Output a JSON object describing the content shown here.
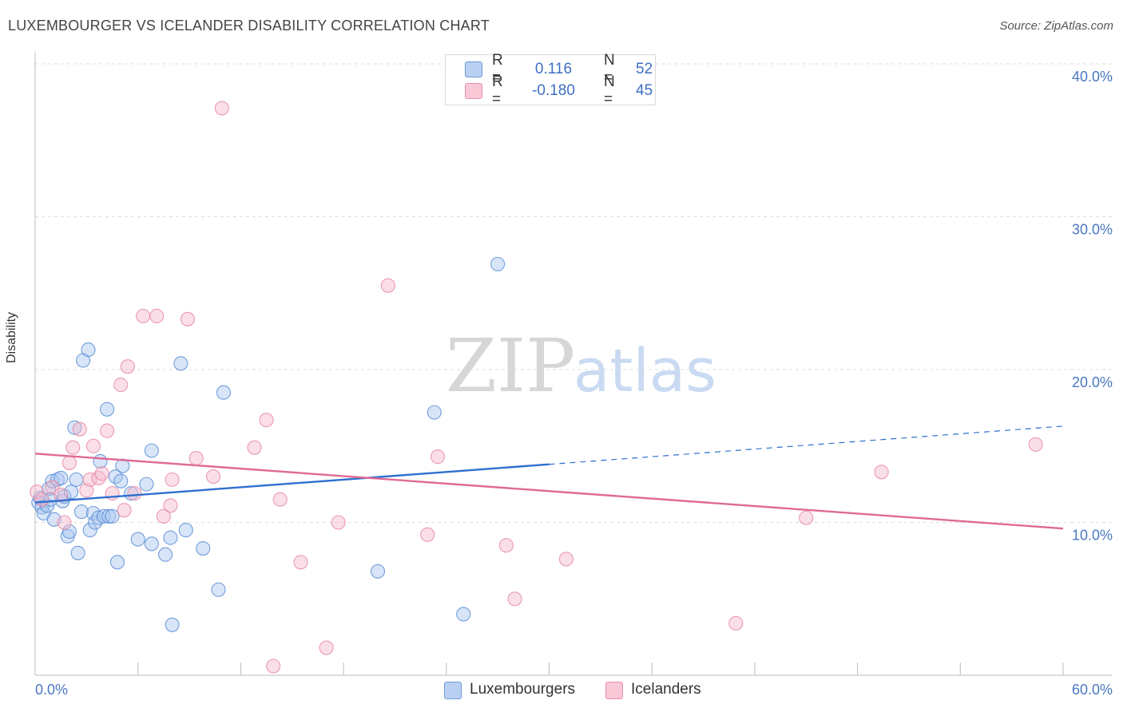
{
  "title": "LUXEMBOURGER VS ICELANDER DISABILITY CORRELATION CHART",
  "source": "Source: ZipAtlas.com",
  "watermark": {
    "part1": "ZIP",
    "part2": "atlas"
  },
  "stats": [
    {
      "r_label": "R =",
      "r_value": "0.116",
      "n_label": "N =",
      "n_value": "52"
    },
    {
      "r_label": "R =",
      "r_value": "-0.180",
      "n_label": "N =",
      "n_value": "45"
    }
  ],
  "legend": [
    {
      "label": "Luxembourgers"
    },
    {
      "label": "Icelanders"
    }
  ],
  "chart_data": {
    "type": "scatter",
    "title": "LUXEMBOURGER VS ICELANDER DISABILITY CORRELATION CHART",
    "xlabel": "",
    "ylabel": "Disability",
    "xlim": [
      0,
      60
    ],
    "ylim": [
      0,
      40
    ],
    "x_tick_labels": [
      "0.0%",
      "60.0%"
    ],
    "y_ticks": [
      10,
      20,
      30,
      40
    ],
    "y_tick_labels": [
      "10.0%",
      "20.0%",
      "30.0%",
      "40.0%"
    ],
    "x_minor_ticks": [
      6,
      12,
      18,
      24,
      30,
      36,
      42,
      48,
      54,
      60
    ],
    "grid": true,
    "legend_position": "bottom-center",
    "colors": {
      "blue_fill": "#a9c6f0",
      "blue_stroke": "#5b8fd6",
      "blue_line": "#2f6fd0",
      "pink_fill": "#f5b9cb",
      "pink_stroke": "#e889a6",
      "pink_line": "#e06a93",
      "axis_label": "#4a78c2",
      "grid": "#dddddd"
    },
    "series": [
      {
        "name": "Luxembourgers",
        "color": "blue",
        "trend": {
          "x0": 0,
          "y0": 11.3,
          "x1": 30,
          "y1": 13.8,
          "dash_to_x": 60,
          "dash_to_y": 16.3
        },
        "points": [
          [
            0.2,
            11.3
          ],
          [
            0.3,
            11.6
          ],
          [
            0.4,
            11.0
          ],
          [
            0.5,
            10.6
          ],
          [
            0.7,
            11.1
          ],
          [
            0.8,
            12.2
          ],
          [
            0.9,
            11.5
          ],
          [
            1.0,
            12.7
          ],
          [
            1.1,
            10.2
          ],
          [
            1.3,
            12.8
          ],
          [
            1.5,
            12.9
          ],
          [
            1.6,
            11.4
          ],
          [
            1.7,
            11.7
          ],
          [
            1.9,
            9.1
          ],
          [
            2.0,
            9.4
          ],
          [
            2.1,
            12.0
          ],
          [
            2.3,
            16.2
          ],
          [
            2.4,
            12.8
          ],
          [
            2.5,
            8.0
          ],
          [
            2.7,
            10.7
          ],
          [
            2.8,
            20.6
          ],
          [
            3.1,
            21.3
          ],
          [
            3.2,
            9.5
          ],
          [
            3.4,
            10.6
          ],
          [
            3.5,
            10.0
          ],
          [
            3.7,
            10.3
          ],
          [
            3.8,
            14.0
          ],
          [
            4.0,
            10.4
          ],
          [
            4.2,
            17.4
          ],
          [
            4.3,
            10.4
          ],
          [
            4.5,
            10.4
          ],
          [
            4.7,
            13.0
          ],
          [
            4.8,
            7.4
          ],
          [
            5.0,
            12.7
          ],
          [
            5.1,
            13.7
          ],
          [
            5.6,
            11.9
          ],
          [
            6.0,
            8.9
          ],
          [
            6.5,
            12.5
          ],
          [
            6.8,
            14.7
          ],
          [
            6.8,
            8.6
          ],
          [
            7.6,
            7.9
          ],
          [
            7.9,
            9.0
          ],
          [
            8.5,
            20.4
          ],
          [
            8.8,
            9.5
          ],
          [
            9.8,
            8.3
          ],
          [
            10.7,
            5.6
          ],
          [
            11.0,
            18.5
          ],
          [
            8.0,
            3.3
          ],
          [
            20.0,
            6.8
          ],
          [
            23.3,
            17.2
          ],
          [
            25.0,
            4.0
          ],
          [
            27.0,
            26.9
          ]
        ]
      },
      {
        "name": "Icelanders",
        "color": "pink",
        "trend": {
          "x0": 0,
          "y0": 14.5,
          "x1": 60,
          "y1": 9.6
        },
        "points": [
          [
            0.1,
            12.0
          ],
          [
            0.4,
            11.5
          ],
          [
            1.0,
            12.3
          ],
          [
            1.5,
            11.8
          ],
          [
            1.7,
            10.0
          ],
          [
            2.0,
            13.9
          ],
          [
            2.2,
            14.9
          ],
          [
            2.6,
            16.1
          ],
          [
            3.0,
            12.1
          ],
          [
            3.2,
            12.8
          ],
          [
            3.4,
            15.0
          ],
          [
            3.7,
            12.9
          ],
          [
            3.9,
            13.2
          ],
          [
            4.2,
            16.0
          ],
          [
            4.5,
            11.9
          ],
          [
            5.0,
            19.0
          ],
          [
            5.2,
            10.8
          ],
          [
            5.4,
            20.2
          ],
          [
            5.8,
            11.9
          ],
          [
            6.3,
            23.5
          ],
          [
            7.1,
            23.5
          ],
          [
            7.5,
            10.4
          ],
          [
            7.9,
            11.1
          ],
          [
            8.0,
            12.8
          ],
          [
            8.9,
            23.3
          ],
          [
            9.4,
            14.2
          ],
          [
            10.4,
            13.0
          ],
          [
            10.9,
            37.1
          ],
          [
            12.8,
            14.9
          ],
          [
            13.5,
            16.7
          ],
          [
            14.3,
            11.5
          ],
          [
            15.5,
            7.4
          ],
          [
            17.0,
            1.8
          ],
          [
            13.9,
            0.6
          ],
          [
            17.7,
            10.0
          ],
          [
            20.6,
            25.5
          ],
          [
            22.9,
            9.2
          ],
          [
            23.5,
            14.3
          ],
          [
            27.5,
            8.5
          ],
          [
            28.0,
            5.0
          ],
          [
            31.0,
            7.6
          ],
          [
            40.9,
            3.4
          ],
          [
            45.0,
            10.3
          ],
          [
            49.4,
            13.3
          ],
          [
            58.4,
            15.1
          ]
        ]
      }
    ]
  }
}
